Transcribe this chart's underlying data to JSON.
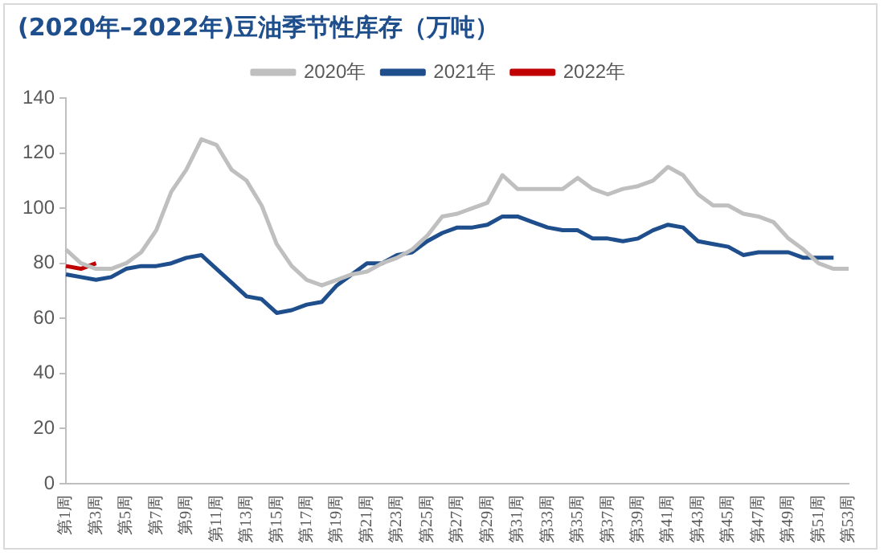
{
  "chart_data": {
    "type": "line",
    "title": "(2020年–2022年)豆油季节性库存（万吨）",
    "categories": [
      "第1周",
      null,
      "第3周",
      null,
      "第5周",
      null,
      "第7周",
      null,
      "第9周",
      null,
      "第11周",
      null,
      "第13周",
      null,
      "第15周",
      null,
      "第17周",
      null,
      "第19周",
      null,
      "第21周",
      null,
      "第23周",
      null,
      "第25周",
      null,
      "第27周",
      null,
      "第29周",
      null,
      "第31周",
      null,
      "第33周",
      null,
      "第35周",
      null,
      "第37周",
      null,
      "第39周",
      null,
      "第41周",
      null,
      "第43周",
      null,
      "第45周",
      null,
      "第47周",
      null,
      "第49周",
      null,
      "第51周",
      null,
      "第53周"
    ],
    "series": [
      {
        "name": "2020年",
        "color": "#bfbfbf",
        "values": [
          85,
          80,
          78,
          78,
          80,
          84,
          92,
          106,
          114,
          125,
          123,
          114,
          110,
          101,
          87,
          79,
          74,
          72,
          74,
          76,
          77,
          80,
          82,
          85,
          90,
          97,
          98,
          100,
          102,
          112,
          107,
          107,
          107,
          107,
          111,
          107,
          105,
          107,
          108,
          110,
          115,
          112,
          105,
          101,
          101,
          98,
          97,
          95,
          89,
          85,
          80,
          78,
          78
        ]
      },
      {
        "name": "2021年",
        "color": "#1f4e8c",
        "values": [
          76,
          75,
          74,
          75,
          78,
          79,
          79,
          80,
          82,
          83,
          78,
          73,
          68,
          67,
          62,
          63,
          65,
          66,
          72,
          76,
          80,
          80,
          83,
          84,
          88,
          91,
          93,
          93,
          94,
          97,
          97,
          95,
          93,
          92,
          92,
          89,
          89,
          88,
          89,
          92,
          94,
          93,
          88,
          87,
          86,
          83,
          84,
          84,
          84,
          82,
          82,
          82,
          null
        ]
      },
      {
        "name": "2022年",
        "color": "#c00000",
        "values": [
          79,
          78,
          80,
          null,
          null,
          null,
          null,
          null,
          null,
          null,
          null,
          null,
          null,
          null,
          null,
          null,
          null,
          null,
          null,
          null,
          null,
          null,
          null,
          null,
          null,
          null,
          null,
          null,
          null,
          null,
          null,
          null,
          null,
          null,
          null,
          null,
          null,
          null,
          null,
          null,
          null,
          null,
          null,
          null,
          null,
          null,
          null,
          null,
          null,
          null,
          null,
          null,
          null
        ]
      }
    ],
    "ylim": [
      0,
      140
    ],
    "yticks": [
      0,
      20,
      40,
      60,
      80,
      100,
      120,
      140
    ],
    "grid": false,
    "legend": "top",
    "marker": "none",
    "line_style": "solid"
  }
}
